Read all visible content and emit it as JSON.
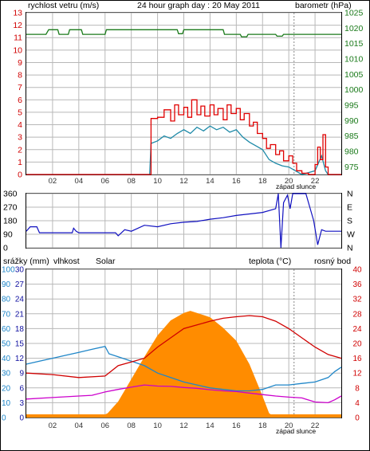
{
  "title": "24 hour graph day : 20 May 2011",
  "colors": {
    "wind": "#e00000",
    "gust": "#e00000",
    "avg": "#1e8aa8",
    "baro": "#1a7a1a",
    "dir": "#1010c0",
    "rain": "#1010c0",
    "humidity": "#1f86c8",
    "solar": "#ff8c00",
    "temp": "#d00000",
    "dew": "#cc00cc",
    "grid": "#b8b8b8",
    "axis": "#000000"
  },
  "labels": {
    "wind_axis": "rychlost vetru (m/s)",
    "baro_axis": "barometr (hPa)",
    "sunset": "západ slunce",
    "rain": "srážky (mm)",
    "humidity": "vlhkost",
    "solar": "Solar",
    "temperature": "teplota (°C)",
    "dewpoint": "rosný bod"
  },
  "x_ticks": [
    "02",
    "04",
    "06",
    "08",
    "10",
    "12",
    "14",
    "16",
    "18",
    "20",
    "22"
  ],
  "sunset_hour": 20.4,
  "chart_data": [
    {
      "type": "line",
      "title": "24 hour graph day : 20 May 2011",
      "x_range": [
        0,
        24
      ],
      "y_left": {
        "label": "rychlost vetru (m/s)",
        "range": [
          0,
          13
        ],
        "ticks": [
          "0",
          "1",
          "2",
          "3",
          "4",
          "5",
          "6",
          "7",
          "8",
          "9",
          "10",
          "11",
          "12",
          "13"
        ]
      },
      "y_right": {
        "label": "barometr (hPa)",
        "range": [
          972.5,
          1025
        ],
        "ticks": [
          "975",
          "980",
          "985",
          "990",
          "995",
          "1000",
          "1005",
          "1010",
          "1015",
          "1020",
          "1025"
        ]
      },
      "series": [
        {
          "name": "gust",
          "axis": "left",
          "points": [
            [
              0,
              0
            ],
            [
              9.4,
              0
            ],
            [
              9.5,
              4.5
            ],
            [
              10,
              4.6
            ],
            [
              10.5,
              5.2
            ],
            [
              11,
              4.3
            ],
            [
              11.3,
              5.6
            ],
            [
              11.6,
              4.8
            ],
            [
              12,
              5.4
            ],
            [
              12.3,
              4.6
            ],
            [
              12.6,
              6.0
            ],
            [
              13,
              4.8
            ],
            [
              13.3,
              5.5
            ],
            [
              13.6,
              4.7
            ],
            [
              14,
              5.6
            ],
            [
              14.3,
              4.8
            ],
            [
              14.6,
              5.3
            ],
            [
              15,
              4.4
            ],
            [
              15.3,
              5.6
            ],
            [
              15.6,
              4.9
            ],
            [
              16,
              5.3
            ],
            [
              16.3,
              4.4
            ],
            [
              16.6,
              4.9
            ],
            [
              17,
              3.9
            ],
            [
              17.3,
              4.2
            ],
            [
              17.6,
              3.3
            ],
            [
              18,
              2.9
            ],
            [
              18.3,
              2.1
            ],
            [
              18.6,
              2.4
            ],
            [
              19,
              1.6
            ],
            [
              19.3,
              1.9
            ],
            [
              19.6,
              1.1
            ],
            [
              20,
              1.5
            ],
            [
              20.3,
              0.9
            ],
            [
              20.6,
              0.3
            ],
            [
              21,
              0.1
            ],
            [
              21.5,
              0
            ],
            [
              22,
              0.8
            ],
            [
              22.2,
              2.2
            ],
            [
              22.4,
              1.2
            ],
            [
              22.6,
              3.2
            ],
            [
              22.8,
              0.6
            ],
            [
              23,
              0
            ],
            [
              24,
              0
            ]
          ]
        },
        {
          "name": "avg",
          "axis": "left",
          "points": [
            [
              0,
              0
            ],
            [
              9.4,
              0
            ],
            [
              9.5,
              2.5
            ],
            [
              10,
              2.7
            ],
            [
              10.5,
              3.1
            ],
            [
              11,
              2.9
            ],
            [
              11.5,
              3.3
            ],
            [
              12,
              3.6
            ],
            [
              12.5,
              3.3
            ],
            [
              13,
              3.8
            ],
            [
              13.5,
              3.5
            ],
            [
              14,
              3.9
            ],
            [
              14.5,
              3.6
            ],
            [
              15,
              3.8
            ],
            [
              15.5,
              3.4
            ],
            [
              16,
              3.6
            ],
            [
              16.5,
              3.0
            ],
            [
              17,
              2.6
            ],
            [
              17.5,
              2.3
            ],
            [
              18,
              2.0
            ],
            [
              18.5,
              1.2
            ],
            [
              19,
              0.9
            ],
            [
              19.5,
              0.7
            ],
            [
              20,
              0.6
            ],
            [
              20.5,
              0.3
            ],
            [
              21,
              0
            ],
            [
              22,
              0.3
            ],
            [
              22.5,
              1.5
            ],
            [
              22.8,
              0.3
            ],
            [
              23,
              0
            ],
            [
              24,
              0
            ]
          ]
        },
        {
          "name": "barometr",
          "axis": "right",
          "points": [
            [
              0,
              1018
            ],
            [
              1.5,
              1018
            ],
            [
              1.7,
              1019.5
            ],
            [
              2.4,
              1019.5
            ],
            [
              2.5,
              1018
            ],
            [
              3.2,
              1018
            ],
            [
              3.3,
              1019.5
            ],
            [
              4.2,
              1019.5
            ],
            [
              4.3,
              1018
            ],
            [
              6,
              1018
            ],
            [
              6.1,
              1019.5
            ],
            [
              11.5,
              1019.5
            ],
            [
              11.6,
              1018.2
            ],
            [
              11.9,
              1018.2
            ],
            [
              12,
              1019.5
            ],
            [
              15,
              1019.5
            ],
            [
              15.1,
              1018
            ],
            [
              16.3,
              1018
            ],
            [
              16.4,
              1017.2
            ],
            [
              16.8,
              1017.2
            ],
            [
              16.9,
              1018
            ],
            [
              19,
              1018
            ],
            [
              19.1,
              1017.4
            ],
            [
              19.5,
              1017.4
            ],
            [
              19.6,
              1018
            ],
            [
              24,
              1018
            ]
          ]
        }
      ]
    },
    {
      "type": "line",
      "title": "",
      "x_range": [
        0,
        24
      ],
      "y_left": {
        "range": [
          0,
          360
        ],
        "ticks": [
          "0",
          "90",
          "180",
          "270",
          "360"
        ]
      },
      "y_right": {
        "ticks": [
          "N",
          "W",
          "S",
          "E",
          "N"
        ]
      },
      "series": [
        {
          "name": "wind direction",
          "points": [
            [
              0,
              110
            ],
            [
              0.3,
              140
            ],
            [
              0.8,
              140
            ],
            [
              1,
              100
            ],
            [
              3.5,
              100
            ],
            [
              3.6,
              130
            ],
            [
              3.8,
              110
            ],
            [
              4,
              100
            ],
            [
              6.8,
              100
            ],
            [
              7,
              80
            ],
            [
              7.5,
              120
            ],
            [
              8,
              110
            ],
            [
              9,
              150
            ],
            [
              10,
              140
            ],
            [
              11,
              160
            ],
            [
              12,
              170
            ],
            [
              13,
              175
            ],
            [
              14,
              190
            ],
            [
              15,
              200
            ],
            [
              16,
              215
            ],
            [
              17,
              225
            ],
            [
              18,
              235
            ],
            [
              19,
              260
            ],
            [
              19.2,
              360
            ],
            [
              19.4,
              0
            ],
            [
              19.6,
              300
            ],
            [
              19.9,
              350
            ],
            [
              20.1,
              260
            ],
            [
              20.3,
              360
            ],
            [
              21.3,
              360
            ],
            [
              21.6,
              270
            ],
            [
              21.9,
              180
            ],
            [
              22.2,
              20
            ],
            [
              22.5,
              120
            ],
            [
              22.8,
              110
            ],
            [
              24,
              110
            ]
          ]
        }
      ]
    },
    {
      "type": "area",
      "title": "",
      "x_range": [
        0,
        24
      ],
      "y_left_outer": {
        "label": "srážky (mm)",
        "range": [
          0,
          100
        ],
        "ticks": [
          "0",
          "10",
          "20",
          "30",
          "40",
          "50",
          "60",
          "70",
          "80",
          "90",
          "100"
        ]
      },
      "y_left_inner": {
        "range": [
          0,
          30
        ],
        "ticks": [
          "0",
          "3",
          "6",
          "9",
          "12",
          "15",
          "18",
          "21",
          "24",
          "27",
          "30"
        ]
      },
      "y_right": {
        "label": "teplota (°C)",
        "range": [
          0,
          40
        ],
        "ticks": [
          "0",
          "4",
          "8",
          "12",
          "16",
          "20",
          "24",
          "28",
          "32",
          "36",
          "40"
        ]
      },
      "series": [
        {
          "name": "Solar",
          "axis": "solar_0_1",
          "points": [
            [
              0,
              0
            ],
            [
              5.5,
              0
            ],
            [
              6.2,
              0.04
            ],
            [
              7,
              0.15
            ],
            [
              8,
              0.36
            ],
            [
              9,
              0.57
            ],
            [
              10,
              0.77
            ],
            [
              11,
              0.91
            ],
            [
              12,
              0.98
            ],
            [
              12.5,
              1.0
            ],
            [
              13,
              0.98
            ],
            [
              14,
              0.94
            ],
            [
              15,
              0.84
            ],
            [
              16,
              0.72
            ],
            [
              17,
              0.5
            ],
            [
              18,
              0.2
            ],
            [
              18.5,
              0.04
            ],
            [
              19,
              0
            ],
            [
              24,
              0
            ]
          ]
        },
        {
          "name": "vlhkost",
          "axis": "percent",
          "points": [
            [
              0,
              36
            ],
            [
              1,
              38
            ],
            [
              2,
              40
            ],
            [
              3,
              42
            ],
            [
              4,
              44
            ],
            [
              5,
              46
            ],
            [
              6,
              48
            ],
            [
              6.3,
              43
            ],
            [
              7,
              41
            ],
            [
              8,
              38
            ],
            [
              9,
              35
            ],
            [
              10,
              30
            ],
            [
              11,
              27
            ],
            [
              12,
              24
            ],
            [
              13,
              22
            ],
            [
              14,
              20
            ],
            [
              15,
              19
            ],
            [
              16,
              18
            ],
            [
              17,
              18
            ],
            [
              18,
              19
            ],
            [
              19,
              22
            ],
            [
              20,
              22
            ],
            [
              21,
              23
            ],
            [
              22,
              24
            ],
            [
              23,
              27
            ],
            [
              23.5,
              31
            ],
            [
              24,
              34
            ]
          ]
        },
        {
          "name": "teplota",
          "axis": "temp",
          "points": [
            [
              0,
              12
            ],
            [
              2,
              11.6
            ],
            [
              4,
              10.8
            ],
            [
              6,
              11.2
            ],
            [
              7,
              14
            ],
            [
              8,
              15
            ],
            [
              9,
              16
            ],
            [
              10,
              19
            ],
            [
              11,
              21.5
            ],
            [
              12,
              24
            ],
            [
              13,
              25
            ],
            [
              14,
              26
            ],
            [
              15,
              26.8
            ],
            [
              16,
              27.2
            ],
            [
              17,
              27.5
            ],
            [
              18,
              27.2
            ],
            [
              19,
              26
            ],
            [
              20,
              24
            ],
            [
              21,
              21.5
            ],
            [
              22,
              19
            ],
            [
              23,
              17
            ],
            [
              24,
              16
            ]
          ]
        },
        {
          "name": "rosný bod",
          "axis": "temp",
          "points": [
            [
              0,
              5
            ],
            [
              2,
              5.4
            ],
            [
              4,
              5.8
            ],
            [
              5,
              6
            ],
            [
              6,
              6.9
            ],
            [
              7,
              7.6
            ],
            [
              8,
              8.2
            ],
            [
              9,
              8.8
            ],
            [
              10,
              8.5
            ],
            [
              11,
              8.4
            ],
            [
              12,
              8.1
            ],
            [
              13,
              7.9
            ],
            [
              14,
              7.5
            ],
            [
              15,
              7.2
            ],
            [
              16,
              7.0
            ],
            [
              17,
              6.6
            ],
            [
              18,
              6.2
            ],
            [
              19,
              5.8
            ],
            [
              20,
              5.5
            ],
            [
              21,
              5.3
            ],
            [
              22,
              4.2
            ],
            [
              23,
              4.0
            ],
            [
              23.5,
              4.8
            ],
            [
              24,
              5.8
            ]
          ]
        }
      ]
    }
  ]
}
